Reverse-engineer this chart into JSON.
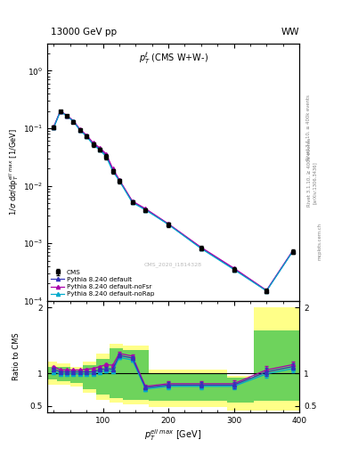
{
  "cms_x": [
    25,
    35,
    45,
    55,
    65,
    75,
    85,
    95,
    105,
    115,
    125,
    145,
    165,
    200,
    250,
    300,
    350,
    390
  ],
  "cms_y": [
    0.105,
    0.195,
    0.162,
    0.13,
    0.092,
    0.072,
    0.052,
    0.042,
    0.032,
    0.018,
    0.012,
    0.0052,
    0.0038,
    0.0021,
    0.00082,
    0.00035,
    0.000148,
    0.00071
  ],
  "cms_yerr": [
    0.008,
    0.012,
    0.01,
    0.008,
    0.006,
    0.005,
    0.004,
    0.003,
    0.003,
    0.0015,
    0.001,
    0.0004,
    0.0003,
    0.00018,
    7e-05,
    3e-05,
    1.3e-05,
    6e-05
  ],
  "py_default_y": [
    0.105,
    0.198,
    0.165,
    0.133,
    0.094,
    0.074,
    0.054,
    0.044,
    0.034,
    0.019,
    0.0125,
    0.0053,
    0.0039,
    0.00215,
    0.00083,
    0.00036,
    0.00015,
    0.00073
  ],
  "py_nofsr_y": [
    0.107,
    0.2,
    0.167,
    0.135,
    0.096,
    0.076,
    0.056,
    0.046,
    0.036,
    0.02,
    0.0128,
    0.0054,
    0.004,
    0.00218,
    0.00085,
    0.00037,
    0.000152,
    0.00074
  ],
  "py_norap_y": [
    0.103,
    0.196,
    0.163,
    0.131,
    0.092,
    0.072,
    0.052,
    0.042,
    0.032,
    0.018,
    0.0122,
    0.0051,
    0.0038,
    0.00212,
    0.00081,
    0.00035,
    0.000148,
    0.00072
  ],
  "ratio_x": [
    25,
    35,
    45,
    55,
    65,
    75,
    85,
    95,
    105,
    115,
    125,
    145,
    165,
    200,
    250,
    300,
    350,
    390
  ],
  "ratio_default_y": [
    1.06,
    1.02,
    1.02,
    1.02,
    1.02,
    1.02,
    1.02,
    1.05,
    1.07,
    1.06,
    1.27,
    1.23,
    0.78,
    0.82,
    0.82,
    0.82,
    1.02,
    1.1
  ],
  "ratio_nofsr_y": [
    1.1,
    1.05,
    1.05,
    1.05,
    1.05,
    1.06,
    1.07,
    1.1,
    1.13,
    1.12,
    1.3,
    1.26,
    0.8,
    0.84,
    0.84,
    0.84,
    1.05,
    1.13
  ],
  "ratio_norap_y": [
    1.02,
    0.99,
    0.99,
    0.99,
    0.99,
    0.99,
    0.99,
    1.02,
    1.04,
    1.03,
    1.24,
    1.2,
    0.76,
    0.8,
    0.8,
    0.8,
    0.99,
    1.07
  ],
  "ratio_yerr": [
    0.03,
    0.02,
    0.02,
    0.02,
    0.02,
    0.02,
    0.02,
    0.03,
    0.04,
    0.04,
    0.05,
    0.05,
    0.06,
    0.08,
    0.08,
    0.1,
    0.12,
    0.1
  ],
  "band_edges": [
    15,
    30,
    50,
    70,
    90,
    110,
    130,
    170,
    290,
    330,
    400
  ],
  "yellow_top": [
    1.17,
    1.15,
    1.1,
    1.18,
    1.3,
    1.45,
    1.42,
    1.05,
    0.96,
    2.0,
    2.0
  ],
  "yellow_bot": [
    0.83,
    0.83,
    0.8,
    0.7,
    0.6,
    0.55,
    0.52,
    0.48,
    0.43,
    0.43,
    0.43
  ],
  "green_top": [
    1.1,
    1.09,
    1.06,
    1.12,
    1.22,
    1.38,
    1.35,
    1.0,
    0.93,
    1.65,
    1.65
  ],
  "green_bot": [
    0.9,
    0.88,
    0.85,
    0.76,
    0.68,
    0.62,
    0.6,
    0.58,
    0.55,
    0.58,
    0.58
  ],
  "color_default": "#3333bb",
  "color_nofsr": "#aa00aa",
  "color_norap": "#00aacc",
  "color_cms": "#000000",
  "xlim": [
    15,
    400
  ],
  "ylim_main": [
    0.0001,
    3.0
  ],
  "ylim_ratio": [
    0.4,
    2.1
  ],
  "ratio_yticks": [
    0.5,
    1.0,
    2.0
  ],
  "ratio_yticklabels": [
    "0.5",
    "1",
    "2"
  ]
}
